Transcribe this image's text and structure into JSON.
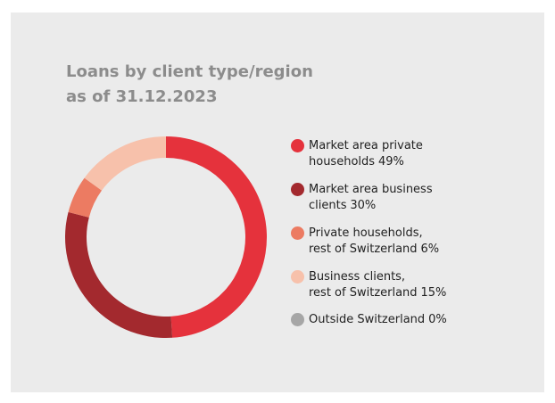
{
  "chart_data": {
    "type": "donut",
    "title": "Loans by client type/region",
    "subtitle": "as of 31.12.2023",
    "categories": [
      "Market area private\nhouseholds",
      "Market area business\nclients",
      "Private households,\nrest of Switzerland",
      "Business clients,\nrest of Switzerland",
      "Outside Switzerland"
    ],
    "values": [
      49,
      30,
      6,
      15,
      0
    ],
    "value_labels": [
      "49%",
      "30%",
      "6%",
      "15%",
      "0%"
    ],
    "colors": [
      "#e5323c",
      "#a3292e",
      "#ec7b62",
      "#f7c1ab",
      "#a6a6a6"
    ]
  }
}
